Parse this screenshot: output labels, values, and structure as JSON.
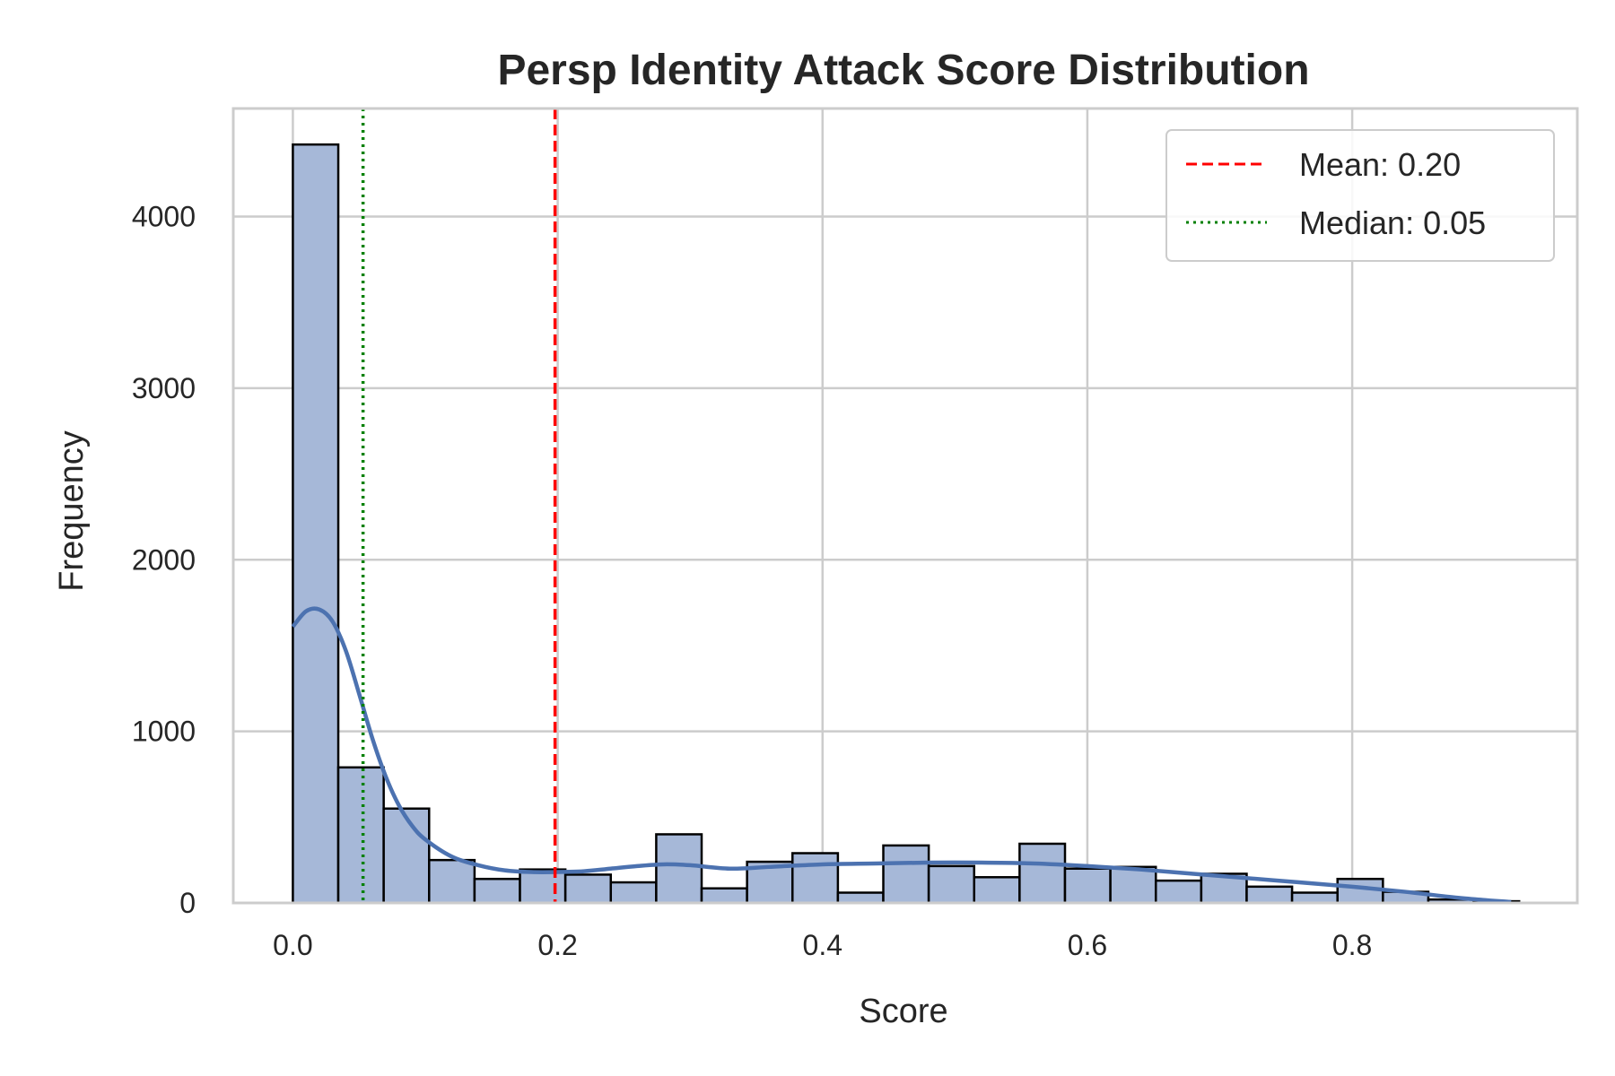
{
  "chart_data": {
    "type": "bar",
    "title": "Persp Identity Attack Score Distribution",
    "xlabel": "Score",
    "ylabel": "Frequency",
    "xlim": [
      -0.045,
      0.97
    ],
    "ylim": [
      0,
      4630
    ],
    "x_ticks": [
      0.0,
      0.2,
      0.4,
      0.6,
      0.8
    ],
    "x_tick_labels": [
      "0.0",
      "0.2",
      "0.4",
      "0.6",
      "0.8"
    ],
    "y_ticks": [
      0,
      1000,
      2000,
      3000,
      4000
    ],
    "y_tick_labels": [
      "0",
      "1000",
      "2000",
      "3000",
      "4000"
    ],
    "grid": true,
    "bins": {
      "edges": [
        0.0,
        0.0343,
        0.0686,
        0.1029,
        0.1372,
        0.1715,
        0.2058,
        0.2401,
        0.2744,
        0.3087,
        0.343,
        0.3773,
        0.4116,
        0.4459,
        0.4802,
        0.5145,
        0.5488,
        0.5831,
        0.6174,
        0.6517,
        0.686,
        0.7203,
        0.7546,
        0.7889,
        0.8232,
        0.8575,
        0.8918,
        0.9261
      ],
      "counts": [
        4420,
        790,
        550,
        250,
        140,
        195,
        165,
        120,
        400,
        85,
        240,
        290,
        60,
        335,
        215,
        150,
        345,
        200,
        210,
        130,
        170,
        95,
        60,
        140,
        65,
        20,
        10
      ]
    },
    "kde": {
      "x": [
        0.0,
        0.01,
        0.02,
        0.03,
        0.04,
        0.05,
        0.06,
        0.07,
        0.08,
        0.09,
        0.1,
        0.12,
        0.14,
        0.16,
        0.18,
        0.2,
        0.22,
        0.24,
        0.26,
        0.28,
        0.3,
        0.33,
        0.36,
        0.4,
        0.44,
        0.48,
        0.52,
        0.56,
        0.6,
        0.64,
        0.68,
        0.72,
        0.76,
        0.8,
        0.84,
        0.88,
        0.92
      ],
      "y": [
        1610,
        1700,
        1710,
        1640,
        1470,
        1220,
        960,
        740,
        570,
        450,
        370,
        270,
        220,
        190,
        180,
        180,
        185,
        200,
        215,
        225,
        220,
        200,
        210,
        225,
        230,
        235,
        235,
        230,
        215,
        195,
        170,
        145,
        120,
        95,
        65,
        30,
        5
      ]
    },
    "reference_lines": [
      {
        "name": "Mean: 0.20",
        "x": 0.198,
        "color": "#ff0000",
        "style": "dashed"
      },
      {
        "name": "Median: 0.05",
        "x": 0.053,
        "color": "#008000",
        "style": "dotted"
      }
    ],
    "legend_placement": "top-right",
    "colors": {
      "bar_fill": "#a6b8d8",
      "bar_edge": "#000000",
      "kde_line": "#4c72b0",
      "grid": "#cccccc",
      "frame": "#cccccc"
    }
  }
}
